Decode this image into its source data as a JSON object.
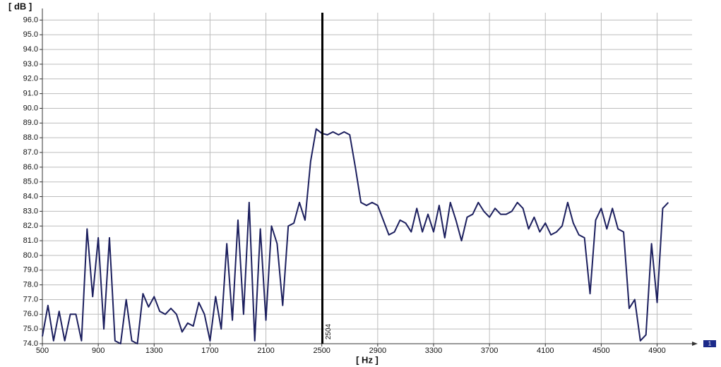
{
  "chart_data": {
    "type": "line",
    "y_label": "[ dB ]",
    "x_label": "[ Hz ]",
    "color": "#1c1f5e",
    "grid": true,
    "cursor": 2504,
    "marker_label": "1",
    "xlim": [
      500,
      5150
    ],
    "ylim": [
      74,
      96.5
    ],
    "xticks": [
      500,
      900,
      1300,
      1700,
      2100,
      2500,
      2900,
      3300,
      3700,
      4100,
      4500,
      4900
    ],
    "yticks": [
      {
        "value": 74,
        "label": "74.0"
      },
      {
        "value": 75,
        "label": "75.0"
      },
      {
        "value": 76,
        "label": "76.0"
      },
      {
        "value": 77,
        "label": "77.0"
      },
      {
        "value": 78,
        "label": "78.0"
      },
      {
        "value": 79,
        "label": "79.0"
      },
      {
        "value": 80,
        "label": "80.0"
      },
      {
        "value": 81,
        "label": "81.0"
      },
      {
        "value": 82,
        "label": "82.0"
      },
      {
        "value": 83,
        "label": "83.0"
      },
      {
        "value": 84,
        "label": "84.0"
      },
      {
        "value": 85,
        "label": "85.0"
      },
      {
        "value": 86,
        "label": "86.0"
      },
      {
        "value": 87,
        "label": "87.0"
      },
      {
        "value": 88,
        "label": "88.0"
      },
      {
        "value": 89,
        "label": "89.0"
      },
      {
        "value": 90,
        "label": "90.0"
      },
      {
        "value": 91,
        "label": "91.0"
      },
      {
        "value": 92,
        "label": "92.0"
      },
      {
        "value": 93,
        "label": "93.0"
      },
      {
        "value": 94,
        "label": "94.0"
      },
      {
        "value": 95,
        "label": "95.0"
      },
      {
        "value": 96,
        "label": "96.0"
      }
    ],
    "x": [
      500,
      540,
      580,
      620,
      660,
      700,
      740,
      780,
      820,
      860,
      900,
      940,
      980,
      1020,
      1060,
      1100,
      1140,
      1180,
      1220,
      1260,
      1300,
      1340,
      1380,
      1420,
      1460,
      1500,
      1540,
      1580,
      1620,
      1660,
      1700,
      1740,
      1780,
      1820,
      1860,
      1900,
      1940,
      1980,
      2020,
      2060,
      2100,
      2140,
      2180,
      2220,
      2260,
      2300,
      2340,
      2380,
      2420,
      2460,
      2500,
      2540,
      2580,
      2620,
      2660,
      2700,
      2740,
      2780,
      2820,
      2860,
      2900,
      2940,
      2980,
      3020,
      3060,
      3100,
      3140,
      3180,
      3220,
      3260,
      3300,
      3340,
      3380,
      3420,
      3460,
      3500,
      3540,
      3580,
      3620,
      3660,
      3700,
      3740,
      3780,
      3820,
      3860,
      3900,
      3940,
      3980,
      4020,
      4060,
      4100,
      4140,
      4180,
      4220,
      4260,
      4300,
      4340,
      4380,
      4420,
      4460,
      4500,
      4540,
      4580,
      4620,
      4660,
      4700,
      4740,
      4780,
      4820,
      4860,
      4900,
      4940,
      4980
    ],
    "values": [
      74.5,
      76.6,
      74.2,
      76.2,
      74.2,
      76.0,
      76.0,
      74.2,
      81.8,
      77.2,
      81.2,
      75.0,
      81.2,
      74.2,
      74.0,
      77.0,
      74.2,
      74.0,
      77.4,
      76.5,
      77.2,
      76.2,
      76.0,
      76.4,
      76.0,
      74.8,
      75.4,
      75.2,
      76.8,
      76.0,
      74.2,
      77.2,
      75.0,
      80.8,
      75.6,
      82.4,
      76.0,
      83.6,
      74.2,
      81.8,
      75.6,
      82.0,
      80.8,
      76.6,
      82.0,
      82.2,
      83.6,
      82.4,
      86.4,
      88.6,
      88.3,
      88.2,
      88.4,
      88.2,
      88.4,
      88.2,
      86.0,
      83.6,
      83.4,
      83.6,
      83.4,
      82.4,
      81.4,
      81.6,
      82.4,
      82.2,
      81.6,
      83.2,
      81.6,
      82.8,
      81.6,
      83.4,
      81.2,
      83.6,
      82.4,
      81.0,
      82.6,
      82.8,
      83.6,
      83.0,
      82.6,
      83.2,
      82.8,
      82.8,
      83.0,
      83.6,
      83.2,
      81.8,
      82.6,
      81.6,
      82.2,
      81.4,
      81.6,
      82.0,
      83.6,
      82.2,
      81.4,
      81.2,
      77.4,
      82.4,
      83.2,
      81.8,
      83.2,
      81.8,
      81.6,
      76.4,
      77.0,
      74.2,
      74.6,
      80.8,
      76.8,
      83.2,
      83.6
    ]
  }
}
